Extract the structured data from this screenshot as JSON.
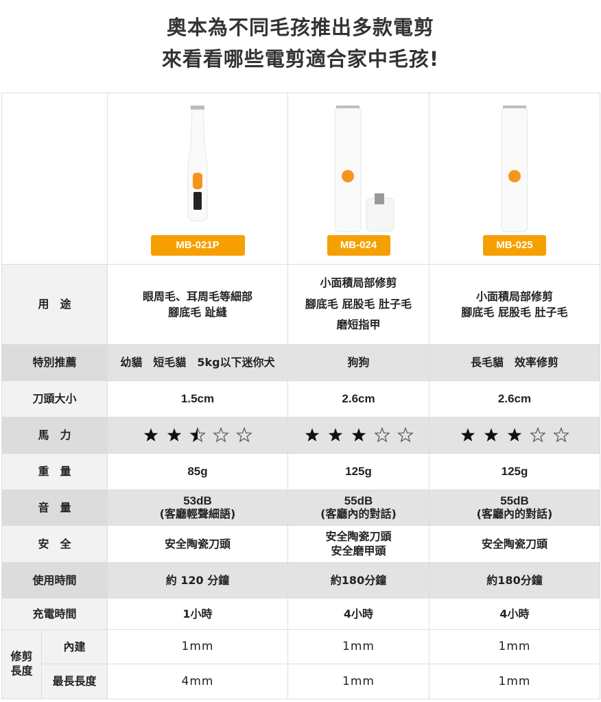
{
  "title": {
    "line1": "奧本為不同毛孩推出多款電剪",
    "line2": "來看看哪些電剪適合家中毛孩!"
  },
  "brand_color": "#f5a000",
  "products": [
    {
      "model": "MB-021P",
      "usage": [
        "眼周毛、耳周毛等細部",
        "腳底毛 趾縫"
      ],
      "recommend": "幼貓　短毛貓　5kg以下迷你犬",
      "blade_size": "1.5cm",
      "power_rating": 2.5,
      "weight": "85g",
      "noise_db": "53dB",
      "noise_desc": "(客廳輕聲細語)",
      "safety": [
        "安全陶瓷刀頭"
      ],
      "use_time": "約 120 分鐘",
      "charge_time": "1小時",
      "builtin": "1mm",
      "max_length": "4mm"
    },
    {
      "model": "MB-024",
      "usage": [
        "小面積局部修剪",
        "腳底毛 屁股毛 肚子毛",
        "磨短指甲"
      ],
      "recommend": "狗狗",
      "blade_size": "2.6cm",
      "power_rating": 3,
      "weight": "125g",
      "noise_db": "55dB",
      "noise_desc": "(客廳內的對話)",
      "safety": [
        "安全陶瓷刀頭",
        "安全磨甲頭"
      ],
      "use_time": "約180分鐘",
      "charge_time": "4小時",
      "builtin": "1mm",
      "max_length": "1mm"
    },
    {
      "model": "MB-025",
      "usage": [
        "小面積局部修剪",
        "腳底毛 屁股毛 肚子毛"
      ],
      "recommend": "長毛貓　效率修剪",
      "blade_size": "2.6cm",
      "power_rating": 3,
      "weight": "125g",
      "noise_db": "55dB",
      "noise_desc": "(客廳內的對話)",
      "safety": [
        "安全陶瓷刀頭"
      ],
      "use_time": "約180分鐘",
      "charge_time": "4小時",
      "builtin": "1mm",
      "max_length": "1mm"
    }
  ],
  "row_labels": {
    "usage": "用　途",
    "recommend": "特別推薦",
    "blade_size": "刀頭大小",
    "power": "馬　力",
    "weight": "重　量",
    "noise": "音　量",
    "safety": "安　全",
    "use_time": "使用時間",
    "charge_time": "充電時間",
    "trim_length": "修剪長度",
    "builtin": "內建",
    "max_length": "最長長度"
  },
  "rating_max": 5
}
